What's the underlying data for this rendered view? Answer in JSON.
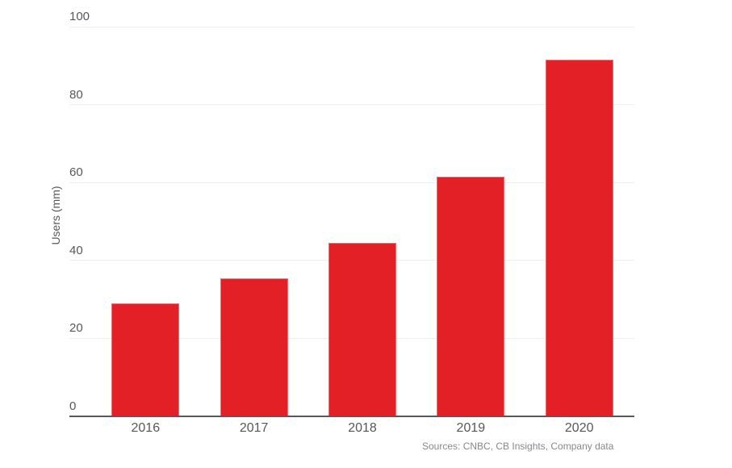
{
  "chart_data": {
    "type": "bar",
    "title": "",
    "categories": [
      "2016",
      "2017",
      "2018",
      "2019",
      "2020"
    ],
    "values": [
      29,
      35.5,
      44.5,
      61.5,
      91.5
    ],
    "series": [
      {
        "name": "Users (mm)",
        "values": [
          29,
          35.5,
          44.5,
          61.5,
          91.5
        ]
      }
    ],
    "xlabel": "",
    "ylabel": "Users (mm)",
    "ylim": [
      0,
      100
    ],
    "yticks": [
      100,
      80,
      60,
      40,
      20,
      0
    ],
    "grid": "horizontal",
    "legend_position": "none",
    "bar_color": "#e32026"
  },
  "footer": {
    "source": "Sources: CNBC, CB Insights, Company data"
  },
  "colors": {
    "bar": "#e32026",
    "axis_line": "#56585b",
    "grid_line": "#eeeeee",
    "tick_text": "#55575a",
    "source_text": "#85878a",
    "background": "#ffffff"
  }
}
